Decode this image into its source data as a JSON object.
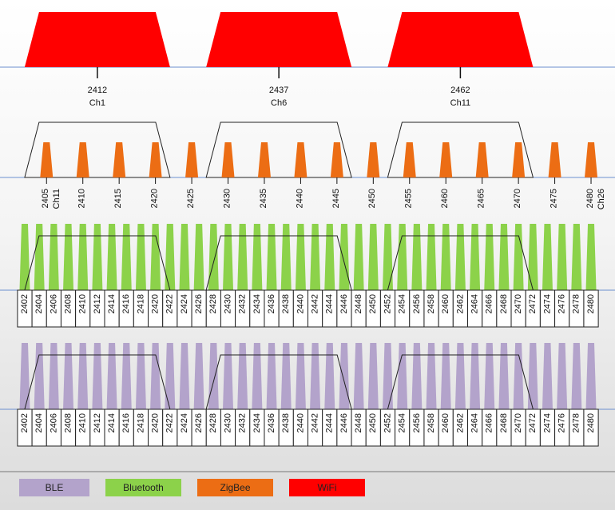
{
  "wifi": {
    "channels": [
      {
        "freq": "2412",
        "label": "Ch1"
      },
      {
        "freq": "2437",
        "label": "Ch6"
      },
      {
        "freq": "2462",
        "label": "Ch11"
      }
    ]
  },
  "zigbee": {
    "freqs": [
      "2405",
      "2410",
      "2415",
      "2420",
      "2425",
      "2430",
      "2435",
      "2440",
      "2445",
      "2450",
      "2455",
      "2460",
      "2465",
      "2470",
      "2475",
      "2480"
    ],
    "first_channel": "Ch11",
    "last_channel": "Ch26"
  },
  "bluetooth": {
    "freqs": [
      "2402",
      "2404",
      "2406",
      "2408",
      "2410",
      "2412",
      "2414",
      "2416",
      "2418",
      "2420",
      "2422",
      "2424",
      "2426",
      "2428",
      "2430",
      "2432",
      "2434",
      "2436",
      "2438",
      "2440",
      "2442",
      "2444",
      "2446",
      "2448",
      "2450",
      "2452",
      "2454",
      "2456",
      "2458",
      "2460",
      "2462",
      "2464",
      "2466",
      "2468",
      "2470",
      "2472",
      "2474",
      "2476",
      "2478",
      "2480"
    ]
  },
  "ble": {
    "freqs": [
      "2402",
      "2404",
      "2406",
      "2408",
      "2410",
      "2412",
      "2414",
      "2416",
      "2418",
      "2420",
      "2422",
      "2424",
      "2426",
      "2428",
      "2430",
      "2432",
      "2434",
      "2436",
      "2438",
      "2440",
      "2442",
      "2444",
      "2446",
      "2448",
      "2450",
      "2452",
      "2454",
      "2456",
      "2458",
      "2460",
      "2462",
      "2464",
      "2466",
      "2468",
      "2470",
      "2472",
      "2474",
      "2476",
      "2478",
      "2480"
    ]
  },
  "legend": [
    {
      "label": "BLE",
      "color": "#b3a3cb"
    },
    {
      "label": "Bluetooth",
      "color": "#8cd24a"
    },
    {
      "label": "ZigBee",
      "color": "#ec6d14"
    },
    {
      "label": "WiFi",
      "color": "#ff0000"
    }
  ],
  "colors": {
    "wifi": "#ff0000",
    "zigbee": "#ec6d14",
    "bluetooth": "#8cd24a",
    "ble": "#b3a3cb",
    "baseline": "#6b8fcf"
  }
}
